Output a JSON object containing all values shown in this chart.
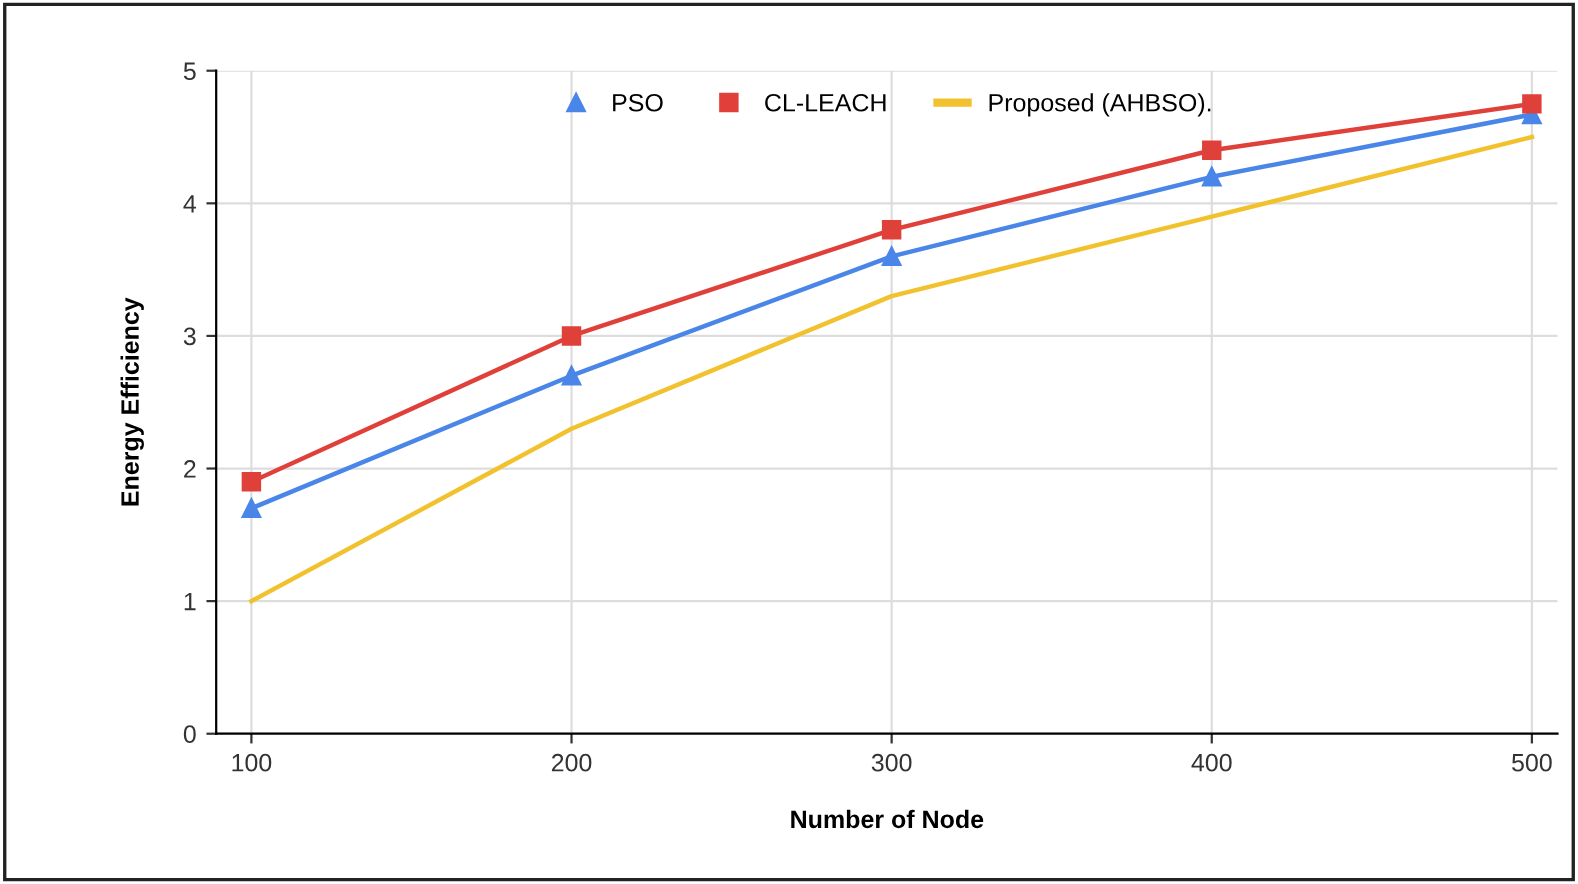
{
  "chart_data": {
    "type": "line",
    "xlabel": "Number of Node",
    "ylabel": "Energy Efficiency",
    "x": [
      100,
      200,
      300,
      400,
      500
    ],
    "series": [
      {
        "name": "PSO",
        "color": "#4a86e8",
        "marker": "triangle",
        "values": [
          1.7,
          2.7,
          3.6,
          4.2,
          4.67
        ]
      },
      {
        "name": "CL-LEACH",
        "color": "#e0403a",
        "marker": "square",
        "values": [
          1.9,
          3.0,
          3.8,
          4.4,
          4.75
        ]
      },
      {
        "name": "Proposed (AHBSO).",
        "color": "#f2c12e",
        "marker": "none",
        "values": [
          1.0,
          2.3,
          3.3,
          3.9,
          4.5
        ]
      }
    ],
    "xlim": [
      89,
      508
    ],
    "ylim": [
      0,
      5
    ],
    "xticks": [
      100,
      200,
      300,
      400,
      500
    ],
    "yticks": [
      0,
      1,
      2,
      3,
      4,
      5
    ],
    "grid": true,
    "legend": "top"
  }
}
